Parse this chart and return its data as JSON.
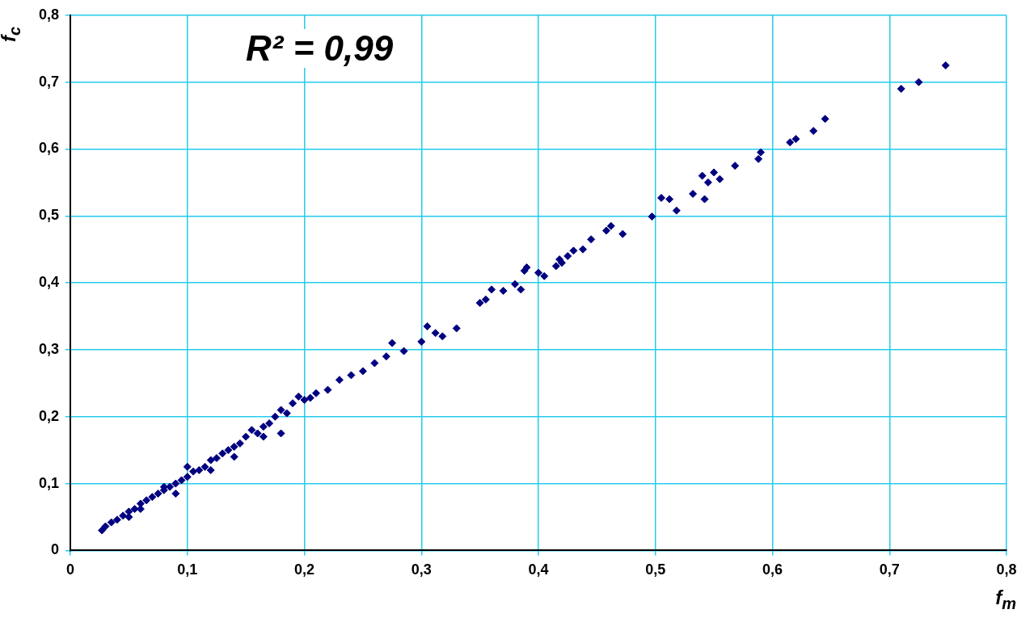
{
  "chart_data": {
    "type": "scatter",
    "xlabel": "f$_{m}$",
    "ylabel": "f$_{c}$",
    "annotations": [
      "R² = 0,99"
    ],
    "xlim": [
      0,
      0.8
    ],
    "ylim": [
      0,
      0.8
    ],
    "xticks": [
      0,
      {
        "value": 0.1,
        "label": "0,1"
      },
      {
        "value": 0.2,
        "label": "0,2"
      },
      {
        "value": 0.3,
        "label": "0,3"
      },
      {
        "value": 0.4,
        "label": "0,4"
      },
      {
        "value": 0.5,
        "label": "0,5"
      },
      {
        "value": 0.6,
        "label": "0,6"
      },
      {
        "value": 0.7,
        "label": "0,7"
      },
      {
        "value": 0.8,
        "label": "0,8"
      }
    ],
    "yticks": [
      0,
      {
        "value": 0.1,
        "label": "0,1"
      },
      {
        "value": 0.2,
        "label": "0,2"
      },
      {
        "value": 0.3,
        "label": "0,3"
      },
      {
        "value": 0.4,
        "label": "0,4"
      },
      {
        "value": 0.5,
        "label": "0,5"
      },
      {
        "value": 0.6,
        "label": "0,6"
      },
      {
        "value": 0.7,
        "label": "0,7"
      },
      {
        "value": 0.8,
        "label": "0,8"
      }
    ],
    "grid": true,
    "marker": "diamond",
    "series": [
      {
        "color": "#000080",
        "x": [
          0.748,
          0.725,
          0.71,
          0.645,
          0.635,
          0.62,
          0.615,
          0.59,
          0.588,
          0.568,
          0.555,
          0.55,
          0.545,
          0.54,
          0.542,
          0.532,
          0.518,
          0.512,
          0.505,
          0.497,
          0.472,
          0.462,
          0.458,
          0.445,
          0.438,
          0.43,
          0.425,
          0.42,
          0.418,
          0.415,
          0.405,
          0.4,
          0.39,
          0.388,
          0.385,
          0.38,
          0.37,
          0.36,
          0.355,
          0.35,
          0.33,
          0.318,
          0.312,
          0.305,
          0.3,
          0.285,
          0.275,
          0.27,
          0.26,
          0.25,
          0.24,
          0.23,
          0.22,
          0.21,
          0.205,
          0.2,
          0.195,
          0.19,
          0.185,
          0.18,
          0.175,
          0.17,
          0.165,
          0.16,
          0.155,
          0.15,
          0.145,
          0.14,
          0.135,
          0.13,
          0.125,
          0.12,
          0.115,
          0.11,
          0.105,
          0.1,
          0.095,
          0.09,
          0.085,
          0.08,
          0.075,
          0.07,
          0.065,
          0.06,
          0.055,
          0.05,
          0.045,
          0.04,
          0.035,
          0.03,
          0.027,
          0.1,
          0.09,
          0.08,
          0.06,
          0.05,
          0.165,
          0.18,
          0.14,
          0.12
        ],
        "values": [
          0.725,
          0.7,
          0.69,
          0.645,
          0.627,
          0.615,
          0.61,
          0.595,
          0.585,
          0.575,
          0.555,
          0.565,
          0.55,
          0.56,
          0.525,
          0.533,
          0.508,
          0.525,
          0.527,
          0.499,
          0.473,
          0.485,
          0.478,
          0.465,
          0.45,
          0.448,
          0.44,
          0.43,
          0.435,
          0.425,
          0.41,
          0.415,
          0.423,
          0.418,
          0.39,
          0.398,
          0.388,
          0.39,
          0.375,
          0.37,
          0.332,
          0.32,
          0.325,
          0.335,
          0.312,
          0.298,
          0.31,
          0.29,
          0.28,
          0.268,
          0.262,
          0.255,
          0.24,
          0.235,
          0.228,
          0.225,
          0.23,
          0.22,
          0.205,
          0.21,
          0.2,
          0.19,
          0.185,
          0.175,
          0.18,
          0.17,
          0.16,
          0.155,
          0.15,
          0.145,
          0.138,
          0.135,
          0.125,
          0.12,
          0.118,
          0.11,
          0.105,
          0.1,
          0.095,
          0.09,
          0.085,
          0.08,
          0.075,
          0.07,
          0.062,
          0.058,
          0.052,
          0.046,
          0.042,
          0.036,
          0.03,
          0.125,
          0.085,
          0.095,
          0.062,
          0.05,
          0.17,
          0.175,
          0.14,
          0.12
        ]
      }
    ]
  }
}
